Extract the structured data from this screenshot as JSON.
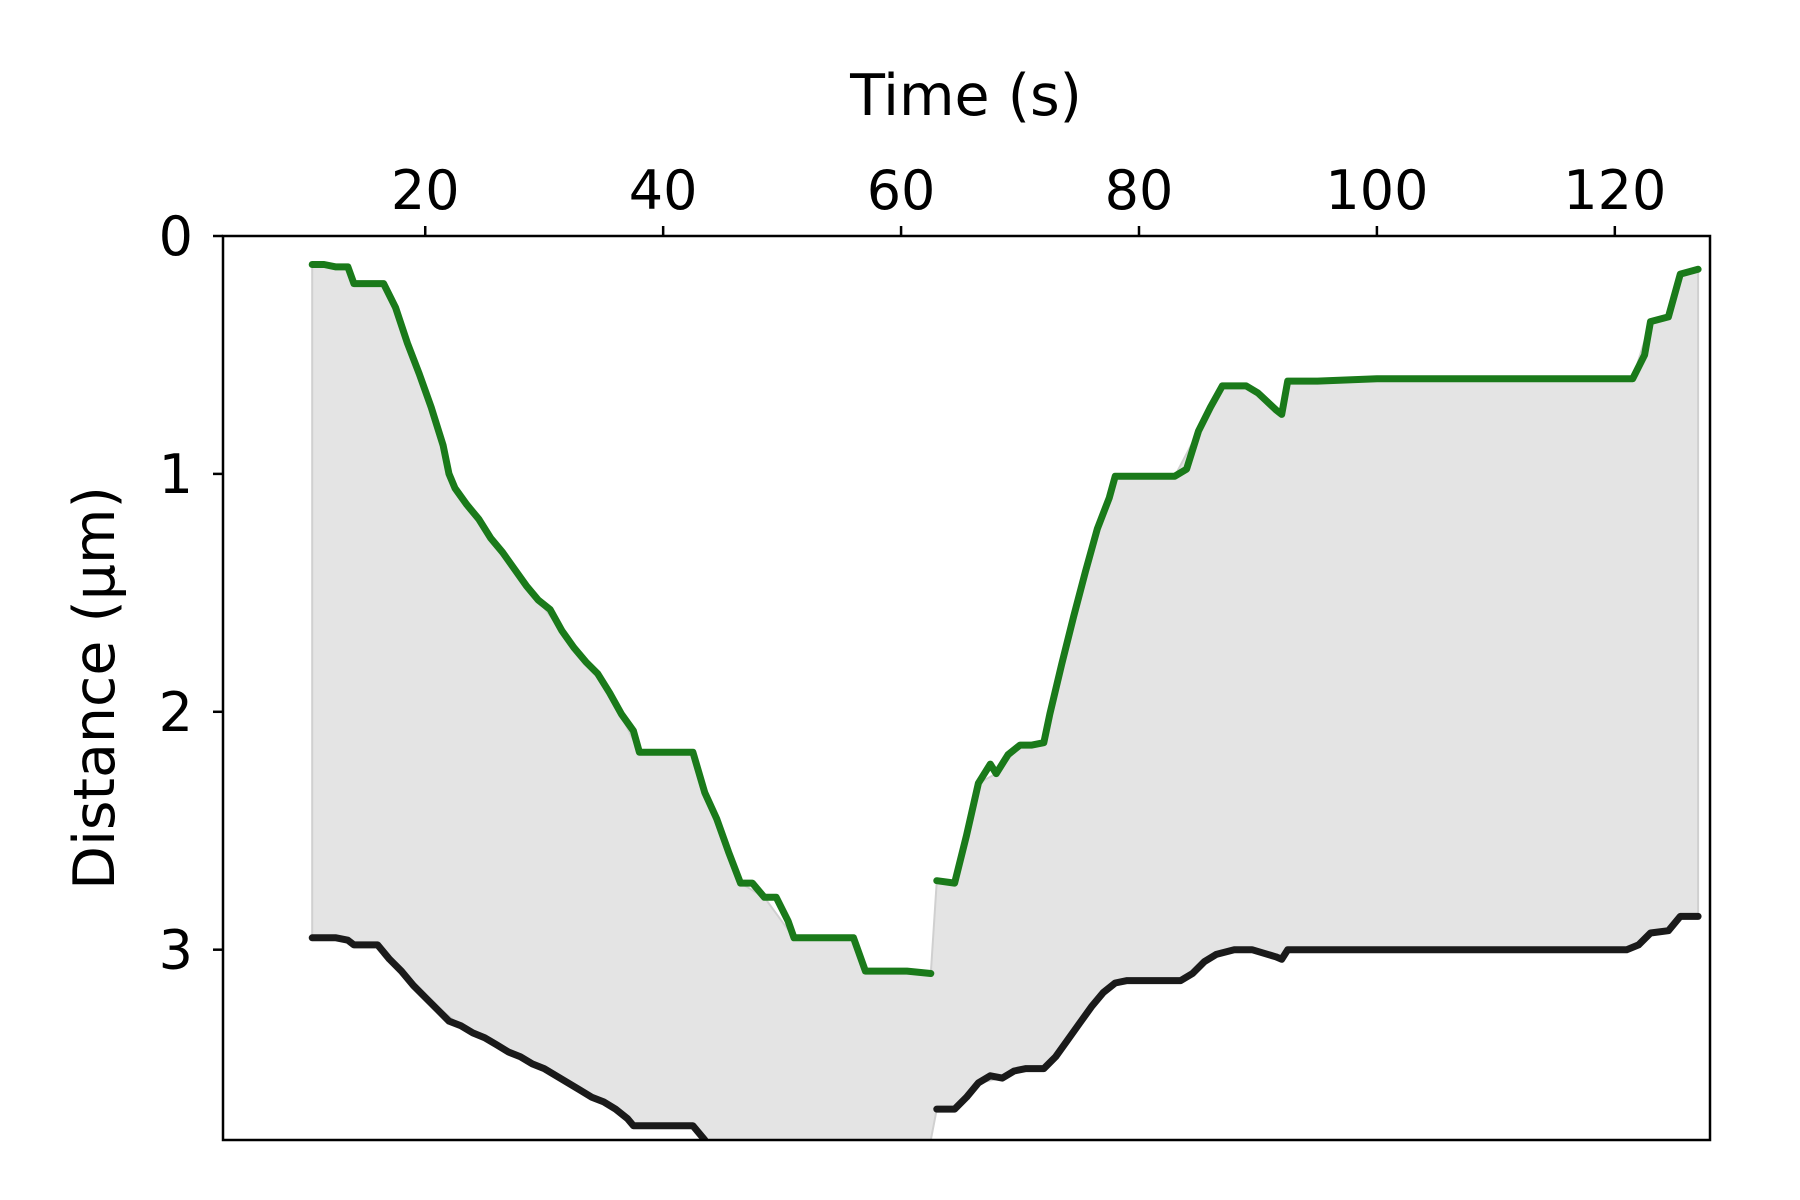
{
  "chart_data": {
    "type": "line",
    "title": "",
    "xlabel": "Time (s)",
    "ylabel": "Distance (µm)",
    "x_axis_position": "top",
    "y_inverted": true,
    "xlim": [
      3,
      128
    ],
    "ylim": [
      0,
      3.8
    ],
    "x_ticks": [
      20,
      40,
      60,
      80,
      100,
      120
    ],
    "x_tick_labels": [
      "20",
      "40",
      "60",
      "80",
      "100",
      "120"
    ],
    "y_ticks": [
      0,
      1,
      2,
      3
    ],
    "y_tick_labels": [
      "0",
      "1",
      "2",
      "3"
    ],
    "grid": false,
    "legend": "none",
    "fill_between_series": true,
    "fill_color": "#e4e4e4",
    "series": [
      {
        "color": "#1a7a1a",
        "segments": [
          [
            [
              10.5,
              0.12
            ],
            [
              11.5,
              0.12
            ],
            [
              12.5,
              0.13
            ],
            [
              13.5,
              0.13
            ],
            [
              14.0,
              0.2
            ],
            [
              15.5,
              0.2
            ],
            [
              16.5,
              0.2
            ],
            [
              17.5,
              0.3
            ],
            [
              18.5,
              0.45
            ],
            [
              19.5,
              0.58
            ],
            [
              20.5,
              0.72
            ],
            [
              21.5,
              0.88
            ],
            [
              22.0,
              1.0
            ],
            [
              22.5,
              1.06
            ],
            [
              23.5,
              1.13
            ],
            [
              24.5,
              1.19
            ],
            [
              25.5,
              1.27
            ],
            [
              26.5,
              1.33
            ],
            [
              27.5,
              1.4
            ],
            [
              28.5,
              1.47
            ],
            [
              29.5,
              1.53
            ],
            [
              30.5,
              1.57
            ],
            [
              31.5,
              1.66
            ],
            [
              32.5,
              1.73
            ],
            [
              33.5,
              1.79
            ],
            [
              34.5,
              1.84
            ],
            [
              35.5,
              1.92
            ],
            [
              36.5,
              2.01
            ],
            [
              37.5,
              2.08
            ],
            [
              38.0,
              2.17
            ],
            [
              39.5,
              2.17
            ],
            [
              41.5,
              2.17
            ],
            [
              42.5,
              2.17
            ],
            [
              43.5,
              2.34
            ],
            [
              44.5,
              2.45
            ],
            [
              45.5,
              2.59
            ],
            [
              46.5,
              2.72
            ],
            [
              47.5,
              2.72
            ],
            [
              48.5,
              2.78
            ],
            [
              49.5,
              2.78
            ],
            [
              50.5,
              2.88
            ],
            [
              51.0,
              2.95
            ],
            [
              53.0,
              2.95
            ],
            [
              55.0,
              2.95
            ],
            [
              56.0,
              2.95
            ],
            [
              57.0,
              3.09
            ],
            [
              59.0,
              3.09
            ],
            [
              60.5,
              3.09
            ],
            [
              62.5,
              3.1
            ]
          ],
          [
            [
              63.0,
              2.71
            ],
            [
              64.5,
              2.72
            ],
            [
              65.5,
              2.52
            ],
            [
              66.5,
              2.3
            ],
            [
              67.5,
              2.22
            ],
            [
              68.0,
              2.26
            ],
            [
              69.0,
              2.18
            ],
            [
              70.0,
              2.14
            ],
            [
              71.0,
              2.14
            ],
            [
              72.0,
              2.13
            ],
            [
              72.5,
              2.01
            ],
            [
              73.5,
              1.8
            ],
            [
              74.5,
              1.6
            ],
            [
              75.5,
              1.41
            ],
            [
              76.5,
              1.23
            ],
            [
              77.5,
              1.1
            ],
            [
              78.0,
              1.01
            ],
            [
              80.0,
              1.01
            ],
            [
              81.5,
              1.01
            ],
            [
              83.0,
              1.01
            ],
            [
              84.0,
              0.98
            ],
            [
              85.0,
              0.82
            ],
            [
              86.0,
              0.72
            ],
            [
              87.0,
              0.63
            ],
            [
              89.0,
              0.63
            ],
            [
              90.0,
              0.66
            ],
            [
              91.5,
              0.73
            ],
            [
              92.0,
              0.75
            ],
            [
              92.5,
              0.61
            ],
            [
              95.0,
              0.61
            ],
            [
              100.0,
              0.6
            ],
            [
              105.0,
              0.6
            ],
            [
              110.0,
              0.6
            ],
            [
              115.0,
              0.6
            ],
            [
              120.0,
              0.6
            ],
            [
              121.5,
              0.6
            ],
            [
              122.5,
              0.5
            ],
            [
              123.0,
              0.36
            ],
            [
              124.5,
              0.34
            ],
            [
              125.5,
              0.16
            ],
            [
              127.0,
              0.14
            ]
          ]
        ]
      },
      {
        "color": "#1a1a1a",
        "segments": [
          [
            [
              10.5,
              2.95
            ],
            [
              11.5,
              2.95
            ],
            [
              12.5,
              2.95
            ],
            [
              13.5,
              2.96
            ],
            [
              14.0,
              2.98
            ],
            [
              16.0,
              2.98
            ],
            [
              17.0,
              3.04
            ],
            [
              18.0,
              3.09
            ],
            [
              19.0,
              3.15
            ],
            [
              20.0,
              3.2
            ],
            [
              21.0,
              3.25
            ],
            [
              22.0,
              3.3
            ],
            [
              23.0,
              3.32
            ],
            [
              24.0,
              3.35
            ],
            [
              25.0,
              3.37
            ],
            [
              26.0,
              3.4
            ],
            [
              27.0,
              3.43
            ],
            [
              28.0,
              3.45
            ],
            [
              29.0,
              3.48
            ],
            [
              30.0,
              3.5
            ],
            [
              31.0,
              3.53
            ],
            [
              32.0,
              3.56
            ],
            [
              33.0,
              3.59
            ],
            [
              34.0,
              3.62
            ],
            [
              35.0,
              3.64
            ],
            [
              36.0,
              3.67
            ],
            [
              37.0,
              3.71
            ],
            [
              37.5,
              3.74
            ],
            [
              39.5,
              3.74
            ],
            [
              41.5,
              3.74
            ],
            [
              42.5,
              3.74
            ],
            [
              43.5,
              3.8
            ]
          ],
          [
            [
              63.0,
              3.67
            ],
            [
              64.5,
              3.67
            ],
            [
              65.5,
              3.62
            ],
            [
              66.5,
              3.56
            ],
            [
              67.5,
              3.53
            ],
            [
              68.5,
              3.54
            ],
            [
              69.5,
              3.51
            ],
            [
              70.5,
              3.5
            ],
            [
              72.0,
              3.5
            ],
            [
              73.0,
              3.45
            ],
            [
              74.0,
              3.38
            ],
            [
              75.0,
              3.31
            ],
            [
              76.0,
              3.24
            ],
            [
              77.0,
              3.18
            ],
            [
              78.0,
              3.14
            ],
            [
              79.0,
              3.13
            ],
            [
              81.5,
              3.13
            ],
            [
              83.5,
              3.13
            ],
            [
              84.5,
              3.1
            ],
            [
              85.5,
              3.05
            ],
            [
              86.5,
              3.02
            ],
            [
              88.0,
              3.0
            ],
            [
              89.5,
              3.0
            ],
            [
              91.5,
              3.03
            ],
            [
              92.0,
              3.04
            ],
            [
              92.5,
              3.0
            ],
            [
              95.0,
              3.0
            ],
            [
              100.0,
              3.0
            ],
            [
              105.0,
              3.0
            ],
            [
              110.0,
              3.0
            ],
            [
              115.0,
              3.0
            ],
            [
              121.0,
              3.0
            ],
            [
              122.0,
              2.98
            ],
            [
              123.0,
              2.93
            ],
            [
              124.5,
              2.92
            ],
            [
              125.5,
              2.86
            ],
            [
              127.0,
              2.86
            ]
          ]
        ]
      }
    ],
    "fill_regions": [
      {
        "upper": [
          [
            10.5,
            0.12
          ],
          [
            13.5,
            0.13
          ],
          [
            14.0,
            0.2
          ],
          [
            16.5,
            0.2
          ],
          [
            18.5,
            0.45
          ],
          [
            20.5,
            0.72
          ],
          [
            22.0,
            1.0
          ],
          [
            23.5,
            1.13
          ],
          [
            26.5,
            1.33
          ],
          [
            29.5,
            1.53
          ],
          [
            32.5,
            1.73
          ],
          [
            35.5,
            1.92
          ],
          [
            38.0,
            2.17
          ],
          [
            42.5,
            2.17
          ],
          [
            44.5,
            2.45
          ],
          [
            46.5,
            2.72
          ],
          [
            48.5,
            2.78
          ],
          [
            51.0,
            2.95
          ],
          [
            56.0,
            2.95
          ],
          [
            57.0,
            3.09
          ],
          [
            62.5,
            3.1
          ],
          [
            63.0,
            2.71
          ],
          [
            64.5,
            2.72
          ],
          [
            66.5,
            2.3
          ],
          [
            68.0,
            2.26
          ],
          [
            70.0,
            2.14
          ],
          [
            72.0,
            2.13
          ],
          [
            74.5,
            1.6
          ],
          [
            76.5,
            1.23
          ],
          [
            78.0,
            1.01
          ],
          [
            83.0,
            1.01
          ],
          [
            85.0,
            0.82
          ],
          [
            87.0,
            0.63
          ],
          [
            89.0,
            0.63
          ],
          [
            92.0,
            0.75
          ],
          [
            92.5,
            0.61
          ],
          [
            100.0,
            0.6
          ],
          [
            121.5,
            0.6
          ],
          [
            123.0,
            0.36
          ],
          [
            124.5,
            0.34
          ],
          [
            125.5,
            0.16
          ],
          [
            127.0,
            0.14
          ]
        ],
        "lower": [
          [
            10.5,
            2.95
          ],
          [
            13.5,
            2.96
          ],
          [
            14.0,
            2.98
          ],
          [
            16.0,
            2.98
          ],
          [
            20.0,
            3.2
          ],
          [
            23.0,
            3.32
          ],
          [
            30.0,
            3.5
          ],
          [
            36.0,
            3.67
          ],
          [
            37.5,
            3.74
          ],
          [
            42.5,
            3.74
          ],
          [
            43.5,
            3.8
          ],
          [
            62.5,
            3.8
          ],
          [
            63.0,
            3.67
          ],
          [
            64.5,
            3.67
          ],
          [
            66.5,
            3.56
          ],
          [
            68.5,
            3.54
          ],
          [
            70.5,
            3.5
          ],
          [
            72.0,
            3.5
          ],
          [
            76.0,
            3.24
          ],
          [
            78.0,
            3.14
          ],
          [
            83.5,
            3.13
          ],
          [
            86.5,
            3.02
          ],
          [
            89.5,
            3.0
          ],
          [
            92.0,
            3.04
          ],
          [
            92.5,
            3.0
          ],
          [
            121.0,
            3.0
          ],
          [
            123.0,
            2.93
          ],
          [
            124.5,
            2.92
          ],
          [
            125.5,
            2.86
          ],
          [
            127.0,
            2.86
          ]
        ]
      }
    ]
  }
}
